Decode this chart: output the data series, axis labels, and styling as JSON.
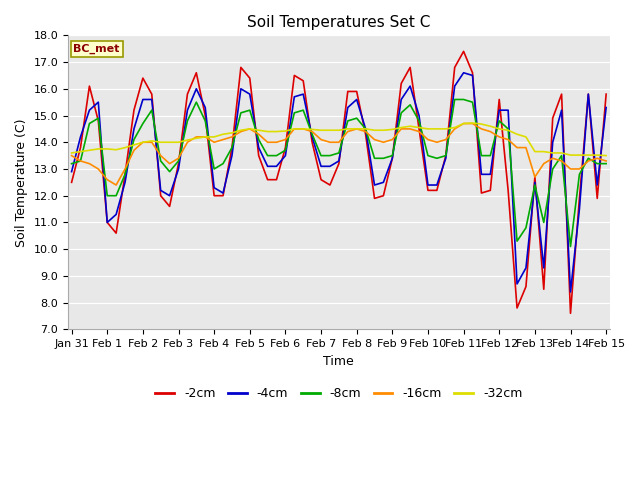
{
  "title": "Soil Temperatures Set C",
  "xlabel": "Time",
  "ylabel": "Soil Temperature (C)",
  "ylim": [
    7.0,
    18.0
  ],
  "yticks": [
    7.0,
    8.0,
    9.0,
    10.0,
    11.0,
    12.0,
    13.0,
    14.0,
    15.0,
    16.0,
    17.0,
    18.0
  ],
  "annotation": "BC_met",
  "fig_bg_color": "#ffffff",
  "plot_bg_color": "#e8e8e8",
  "series": {
    "-2cm": {
      "color": "#dd0000",
      "x": [
        0.0,
        0.25,
        0.5,
        0.75,
        1.0,
        1.25,
        1.5,
        1.75,
        2.0,
        2.25,
        2.5,
        2.75,
        3.0,
        3.25,
        3.5,
        3.75,
        4.0,
        4.25,
        4.5,
        4.75,
        5.0,
        5.25,
        5.5,
        5.75,
        6.0,
        6.25,
        6.5,
        6.75,
        7.0,
        7.25,
        7.5,
        7.75,
        8.0,
        8.25,
        8.5,
        8.75,
        9.0,
        9.25,
        9.5,
        9.75,
        10.0,
        10.25,
        10.5,
        10.75,
        11.0,
        11.25,
        11.5,
        11.75,
        12.0,
        12.25,
        12.5,
        12.75,
        13.0,
        13.25,
        13.5,
        13.75,
        14.0,
        14.25,
        14.5,
        14.75,
        15.0
      ],
      "y": [
        12.5,
        13.8,
        16.1,
        14.8,
        11.0,
        10.6,
        12.8,
        15.2,
        16.4,
        15.8,
        12.0,
        11.6,
        13.2,
        15.8,
        16.6,
        15.0,
        12.0,
        12.0,
        13.8,
        16.8,
        16.4,
        13.5,
        12.6,
        12.6,
        13.8,
        16.5,
        16.3,
        14.0,
        12.6,
        12.4,
        13.2,
        15.9,
        15.9,
        14.3,
        11.9,
        12.0,
        13.4,
        16.2,
        16.8,
        14.5,
        12.2,
        12.2,
        13.5,
        16.8,
        17.4,
        16.6,
        12.1,
        12.2,
        15.6,
        12.2,
        7.8,
        8.6,
        12.7,
        8.5,
        14.9,
        15.8,
        7.6,
        11.9,
        15.8,
        11.9,
        15.8
      ]
    },
    "-4cm": {
      "color": "#0000cc",
      "x": [
        0.0,
        0.25,
        0.5,
        0.75,
        1.0,
        1.25,
        1.5,
        1.75,
        2.0,
        2.25,
        2.5,
        2.75,
        3.0,
        3.25,
        3.5,
        3.75,
        4.0,
        4.25,
        4.5,
        4.75,
        5.0,
        5.25,
        5.5,
        5.75,
        6.0,
        6.25,
        6.5,
        6.75,
        7.0,
        7.25,
        7.5,
        7.75,
        8.0,
        8.25,
        8.5,
        8.75,
        9.0,
        9.25,
        9.5,
        9.75,
        10.0,
        10.25,
        10.5,
        10.75,
        11.0,
        11.25,
        11.5,
        11.75,
        12.0,
        12.25,
        12.5,
        12.75,
        13.0,
        13.25,
        13.5,
        13.75,
        14.0,
        14.25,
        14.5,
        14.75,
        15.0
      ],
      "y": [
        12.9,
        14.2,
        15.2,
        15.5,
        11.0,
        11.3,
        12.5,
        14.5,
        15.6,
        15.6,
        12.2,
        12.0,
        13.0,
        15.2,
        16.0,
        15.3,
        12.3,
        12.1,
        13.5,
        16.0,
        15.8,
        13.8,
        13.1,
        13.1,
        13.5,
        15.7,
        15.8,
        14.2,
        13.1,
        13.1,
        13.3,
        15.3,
        15.6,
        14.5,
        12.4,
        12.5,
        13.4,
        15.6,
        16.1,
        15.0,
        12.4,
        12.4,
        13.4,
        16.1,
        16.6,
        16.5,
        12.8,
        12.8,
        15.2,
        15.2,
        8.7,
        9.3,
        12.5,
        9.3,
        14.0,
        15.2,
        8.4,
        11.5,
        15.8,
        12.4,
        15.3
      ]
    },
    "-8cm": {
      "color": "#00aa00",
      "x": [
        0.0,
        0.25,
        0.5,
        0.75,
        1.0,
        1.25,
        1.5,
        1.75,
        2.0,
        2.25,
        2.5,
        2.75,
        3.0,
        3.25,
        3.5,
        3.75,
        4.0,
        4.25,
        4.5,
        4.75,
        5.0,
        5.25,
        5.5,
        5.75,
        6.0,
        6.25,
        6.5,
        6.75,
        7.0,
        7.25,
        7.5,
        7.75,
        8.0,
        8.25,
        8.5,
        8.75,
        9.0,
        9.25,
        9.5,
        9.75,
        10.0,
        10.25,
        10.5,
        10.75,
        11.0,
        11.25,
        11.5,
        11.75,
        12.0,
        12.25,
        12.5,
        12.75,
        13.0,
        13.25,
        13.5,
        13.75,
        14.0,
        14.25,
        14.5,
        14.75,
        15.0
      ],
      "y": [
        13.2,
        13.3,
        14.7,
        14.9,
        12.0,
        12.0,
        12.8,
        14.1,
        14.7,
        15.2,
        13.3,
        12.9,
        13.3,
        14.8,
        15.5,
        14.8,
        13.0,
        13.2,
        13.8,
        15.1,
        15.2,
        14.1,
        13.5,
        13.5,
        13.7,
        15.1,
        15.2,
        14.3,
        13.5,
        13.5,
        13.6,
        14.8,
        14.9,
        14.5,
        13.4,
        13.4,
        13.5,
        15.1,
        15.4,
        14.8,
        13.5,
        13.4,
        13.5,
        15.6,
        15.6,
        15.5,
        13.5,
        13.5,
        14.8,
        14.5,
        10.3,
        10.8,
        12.4,
        11.0,
        13.0,
        13.5,
        10.1,
        12.8,
        13.4,
        13.2,
        13.2
      ]
    },
    "-16cm": {
      "color": "#ff8c00",
      "x": [
        0.0,
        0.25,
        0.5,
        0.75,
        1.0,
        1.25,
        1.5,
        1.75,
        2.0,
        2.25,
        2.5,
        2.75,
        3.0,
        3.25,
        3.5,
        3.75,
        4.0,
        4.25,
        4.5,
        4.75,
        5.0,
        5.25,
        5.5,
        5.75,
        6.0,
        6.25,
        6.5,
        6.75,
        7.0,
        7.25,
        7.5,
        7.75,
        8.0,
        8.25,
        8.5,
        8.75,
        9.0,
        9.25,
        9.5,
        9.75,
        10.0,
        10.25,
        10.5,
        10.75,
        11.0,
        11.25,
        11.5,
        11.75,
        12.0,
        12.25,
        12.5,
        12.75,
        13.0,
        13.25,
        13.5,
        13.75,
        14.0,
        14.25,
        14.5,
        14.75,
        15.0
      ],
      "y": [
        13.5,
        13.3,
        13.2,
        13.0,
        12.6,
        12.4,
        13.0,
        13.7,
        14.0,
        14.0,
        13.5,
        13.2,
        13.4,
        14.0,
        14.2,
        14.2,
        14.0,
        14.1,
        14.2,
        14.4,
        14.5,
        14.3,
        14.0,
        14.0,
        14.1,
        14.5,
        14.5,
        14.4,
        14.1,
        14.0,
        14.0,
        14.4,
        14.5,
        14.4,
        14.1,
        14.0,
        14.1,
        14.5,
        14.5,
        14.4,
        14.1,
        14.0,
        14.1,
        14.5,
        14.7,
        14.7,
        14.5,
        14.4,
        14.2,
        14.1,
        13.8,
        13.8,
        12.7,
        13.2,
        13.4,
        13.3,
        13.0,
        13.0,
        13.3,
        13.4,
        13.3
      ]
    },
    "-32cm": {
      "color": "#dddd00",
      "x": [
        0.0,
        0.25,
        0.5,
        0.75,
        1.0,
        1.25,
        1.5,
        1.75,
        2.0,
        2.25,
        2.5,
        2.75,
        3.0,
        3.25,
        3.5,
        3.75,
        4.0,
        4.25,
        4.5,
        4.75,
        5.0,
        5.25,
        5.5,
        5.75,
        6.0,
        6.25,
        6.5,
        6.75,
        7.0,
        7.25,
        7.5,
        7.75,
        8.0,
        8.25,
        8.5,
        8.75,
        9.0,
        9.25,
        9.5,
        9.75,
        10.0,
        10.25,
        10.5,
        10.75,
        11.0,
        11.25,
        11.5,
        11.75,
        12.0,
        12.25,
        12.5,
        12.75,
        13.0,
        13.25,
        13.5,
        13.75,
        14.0,
        14.25,
        14.5,
        14.75,
        15.0
      ],
      "y": [
        13.6,
        13.65,
        13.7,
        13.75,
        13.75,
        13.72,
        13.8,
        13.9,
        14.0,
        14.05,
        14.0,
        14.0,
        14.0,
        14.08,
        14.15,
        14.2,
        14.2,
        14.3,
        14.35,
        14.45,
        14.5,
        14.45,
        14.4,
        14.4,
        14.42,
        14.5,
        14.5,
        14.48,
        14.45,
        14.45,
        14.45,
        14.5,
        14.5,
        14.5,
        14.45,
        14.45,
        14.48,
        14.55,
        14.6,
        14.55,
        14.5,
        14.5,
        14.5,
        14.55,
        14.7,
        14.72,
        14.68,
        14.6,
        14.5,
        14.45,
        14.3,
        14.2,
        13.65,
        13.65,
        13.6,
        13.6,
        13.52,
        13.52,
        13.52,
        13.52,
        13.5
      ]
    }
  },
  "xtick_positions": [
    0,
    1,
    2,
    3,
    4,
    5,
    6,
    7,
    8,
    9,
    10,
    11,
    12,
    13,
    14,
    15
  ],
  "xtick_labels": [
    "Jan 31",
    "Feb 1",
    "Feb 2",
    "Feb 3",
    "Feb 4",
    "Feb 5",
    "Feb 6",
    "Feb 7",
    "Feb 8",
    "Feb 9",
    "Feb 10",
    "Feb 11",
    "Feb 12",
    "Feb 13",
    "Feb 14",
    "Feb 15"
  ],
  "legend_entries": [
    "-2cm",
    "-4cm",
    "-8cm",
    "-16cm",
    "-32cm"
  ],
  "legend_colors": [
    "#dd0000",
    "#0000cc",
    "#00aa00",
    "#ff8c00",
    "#dddd00"
  ],
  "linewidth": 1.2,
  "title_fontsize": 11,
  "label_fontsize": 9,
  "tick_fontsize": 8
}
